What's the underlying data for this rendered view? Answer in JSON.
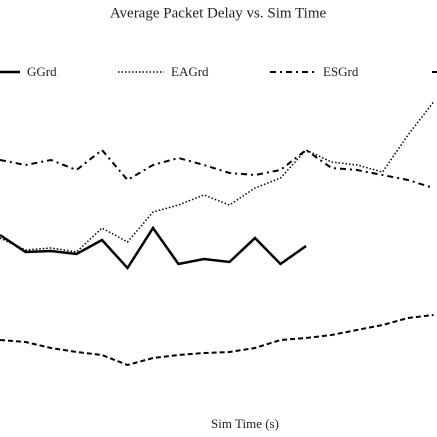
{
  "chart_data": {
    "type": "line",
    "title": "Average Packet Delay vs. Sim Time",
    "xlabel": "Sim Time (s)",
    "categories": [
      null,
      null,
      null,
      null,
      null,
      null,
      null,
      null,
      null,
      null,
      null,
      null,
      null,
      null,
      null,
      null,
      null,
      null
    ],
    "ylim": [
      0,
      280
    ],
    "series": [
      {
        "name": "GGrd",
        "color": "#000000",
        "dash": "solid",
        "values": [
          140,
          123,
          124,
          121,
          135,
          107,
          147,
          111,
          116,
          113,
          137,
          111,
          129,
          null,
          null,
          null,
          null,
          null
        ]
      },
      {
        "name": "EAGrd",
        "color": "#000000",
        "dash": "dotted",
        "values": [
          137,
          125,
          127,
          123,
          147,
          133,
          163,
          170,
          180,
          170,
          187,
          197,
          225,
          213,
          210,
          203,
          240,
          273
        ]
      },
      {
        "name": "ESGrd",
        "color": "#000000",
        "dash": "dashdot",
        "values": [
          215,
          210,
          215,
          205,
          225,
          195,
          210,
          217,
          210,
          202,
          200,
          205,
          225,
          207,
          205,
          200,
          195,
          187
        ]
      },
      {
        "color": "#000000",
        "dash": "dashed",
        "values": [
          35,
          33,
          27,
          23,
          20,
          10,
          17,
          20,
          22,
          23,
          27,
          35,
          37,
          40,
          45,
          50,
          57,
          60
        ]
      }
    ]
  }
}
